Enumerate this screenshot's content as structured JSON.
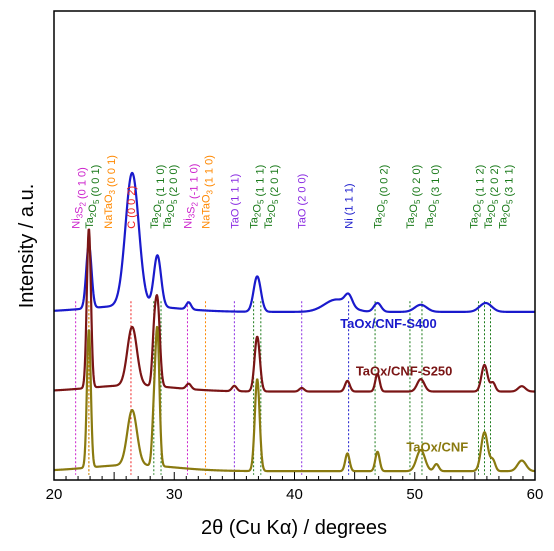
{
  "chart_data": {
    "type": "line",
    "xlabel": "2θ (Cu Kα) / degrees",
    "ylabel": "Intensity / a.u.",
    "xlim": [
      20,
      60
    ],
    "xticks": [
      20,
      25,
      30,
      35,
      40,
      45,
      50,
      55,
      60
    ],
    "xtick_labels": [
      "20",
      "",
      "30",
      "",
      "40",
      "",
      "50",
      "",
      "60"
    ],
    "yunits": "a.u. (stacked, offset)",
    "grid": false,
    "series": [
      {
        "name": "TaOx/CNF-S400",
        "color": "#1a1acc",
        "baseline": 9.5,
        "peaks": [
          [
            22.9,
            3.6,
            0.22
          ],
          [
            26.5,
            7.5,
            0.55
          ],
          [
            28.6,
            2.9,
            0.3
          ],
          [
            31.2,
            0.4,
            0.2
          ],
          [
            36.9,
            2.0,
            0.3
          ],
          [
            43.5,
            0.7,
            1.0
          ],
          [
            44.5,
            0.6,
            0.3
          ],
          [
            46.9,
            0.5,
            0.3
          ],
          [
            50.5,
            0.4,
            0.5
          ],
          [
            55.9,
            0.5,
            0.5
          ]
        ]
      },
      {
        "name": "TaOx/CNF-S250",
        "color": "#7a1515",
        "baseline": 5.0,
        "peaks": [
          [
            22.9,
            9.0,
            0.17
          ],
          [
            26.5,
            3.3,
            0.4
          ],
          [
            28.6,
            4.8,
            0.2
          ],
          [
            28.3,
            2.0,
            0.15
          ],
          [
            31.2,
            0.3,
            0.2
          ],
          [
            35.0,
            0.3,
            0.2
          ],
          [
            36.9,
            3.1,
            0.22
          ],
          [
            40.6,
            0.2,
            0.2
          ],
          [
            44.4,
            0.6,
            0.2
          ],
          [
            46.9,
            1.0,
            0.18
          ],
          [
            50.5,
            0.7,
            0.3
          ],
          [
            55.8,
            1.5,
            0.25
          ],
          [
            56.5,
            0.5,
            0.2
          ],
          [
            58.9,
            0.3,
            0.3
          ]
        ]
      },
      {
        "name": "TaOx/CNF",
        "color": "#8a7a10",
        "baseline": 0.5,
        "peaks": [
          [
            22.9,
            7.8,
            0.16
          ],
          [
            26.5,
            3.1,
            0.4
          ],
          [
            28.6,
            7.5,
            0.17
          ],
          [
            28.3,
            2.5,
            0.15
          ],
          [
            36.9,
            5.2,
            0.2
          ],
          [
            44.4,
            1.0,
            0.18
          ],
          [
            46.9,
            1.1,
            0.18
          ],
          [
            50.5,
            1.2,
            0.35
          ],
          [
            51.8,
            0.4,
            0.2
          ],
          [
            55.8,
            2.2,
            0.28
          ],
          [
            56.5,
            0.6,
            0.2
          ],
          [
            58.9,
            0.6,
            0.35
          ]
        ]
      }
    ],
    "reference_lines": [
      {
        "label": "Ni3S2 (0 1 0)",
        "x": 21.8,
        "color": "#cc22cc"
      },
      {
        "label": "Ta2O5 (0 0 1)",
        "x": 22.9,
        "color": "#1a7a1a"
      },
      {
        "label": "NaTaO3 (0 0 1)",
        "x": 22.9,
        "color": "#ff8800"
      },
      {
        "label": "C (0 0 2)",
        "x": 26.4,
        "color": "#ee2222"
      },
      {
        "label": "Ta2O5 (1 1 0)",
        "x": 28.3,
        "color": "#1a7a1a"
      },
      {
        "label": "Ta2O5 (2 0 0)",
        "x": 28.9,
        "color": "#1a7a1a"
      },
      {
        "label": "Ni3S2 (-1 1 0)",
        "x": 31.1,
        "color": "#cc22cc"
      },
      {
        "label": "NaTaO3 (1 1 0)",
        "x": 32.6,
        "color": "#ff8800"
      },
      {
        "label": "TaO (1 1 1)",
        "x": 35.0,
        "color": "#8a2be2"
      },
      {
        "label": "Ta2O5 (1 1 1)",
        "x": 36.6,
        "color": "#1a7a1a"
      },
      {
        "label": "Ta2O5 (2 0 1)",
        "x": 37.2,
        "color": "#1a7a1a"
      },
      {
        "label": "TaO (2 0 0)",
        "x": 40.6,
        "color": "#8a2be2"
      },
      {
        "label": "Ni (1 1 1)",
        "x": 44.5,
        "color": "#1a1acc"
      },
      {
        "label": "Ta2O5 (0 0 2)",
        "x": 46.7,
        "color": "#1a7a1a"
      },
      {
        "label": "Ta2O5 (0 2 0)",
        "x": 49.6,
        "color": "#1a7a1a"
      },
      {
        "label": "Ta2O5 (3 1 0)",
        "x": 50.6,
        "color": "#1a7a1a"
      },
      {
        "label": "Ta2O5 (1 1 2)",
        "x": 55.3,
        "color": "#1a7a1a"
      },
      {
        "label": "Ta2O5 (2 0 2)",
        "x": 55.8,
        "color": "#1a7a1a"
      },
      {
        "label": "Ta2O5 (3 1 1)",
        "x": 56.3,
        "color": "#1a7a1a"
      }
    ],
    "annotations": [
      {
        "text": "Ni3S2 (0 1 0)",
        "color": "#cc22cc",
        "x": 21.8,
        "orientation": "vertical"
      },
      {
        "text": "Ta2O5 (0 0 1)",
        "color": "#1a7a1a",
        "x": 22.9,
        "orientation": "vertical"
      },
      {
        "text": "NaTaO3 (0 0 1)",
        "color": "#ff8800",
        "x": 24.5,
        "orientation": "vertical"
      },
      {
        "text": "C (0 0 2)",
        "color": "#ee2222",
        "x": 26.4,
        "orientation": "vertical"
      },
      {
        "text": "Ta2O5 (1 1 0)",
        "color": "#1a7a1a",
        "x": 28.3,
        "orientation": "vertical"
      },
      {
        "text": "Ta2O5 (2 0 0)",
        "color": "#1a7a1a",
        "x": 29.4,
        "orientation": "vertical"
      },
      {
        "text": "Ni3S2 (-1 1 0)",
        "color": "#cc22cc",
        "x": 31.1,
        "orientation": "vertical"
      },
      {
        "text": "NaTaO3 (1 1 0)",
        "color": "#ff8800",
        "x": 32.6,
        "orientation": "vertical"
      },
      {
        "text": "TaO (1 1 1)",
        "color": "#8a2be2",
        "x": 35.0,
        "orientation": "vertical"
      },
      {
        "text": "Ta2O5 (1 1 1)",
        "color": "#1a7a1a",
        "x": 36.6,
        "orientation": "vertical"
      },
      {
        "text": "Ta2O5 (2 0 1)",
        "color": "#1a7a1a",
        "x": 37.8,
        "orientation": "vertical"
      },
      {
        "text": "TaO (2 0 0)",
        "color": "#8a2be2",
        "x": 40.6,
        "orientation": "vertical"
      },
      {
        "text": "Ni (1 1 1)",
        "color": "#1a1acc",
        "x": 44.5,
        "orientation": "vertical"
      },
      {
        "text": "Ta2O5 (0 0 2)",
        "color": "#1a7a1a",
        "x": 46.9,
        "orientation": "vertical"
      },
      {
        "text": "Ta2O5 (0 2 0)",
        "color": "#1a7a1a",
        "x": 49.6,
        "orientation": "vertical"
      },
      {
        "text": "Ta2O5 (3 1 0)",
        "color": "#1a7a1a",
        "x": 51.2,
        "orientation": "vertical"
      },
      {
        "text": "Ta2O5 (1 1 2)",
        "color": "#1a7a1a",
        "x": 54.9,
        "orientation": "vertical"
      },
      {
        "text": "Ta2O5 (2 0 2)",
        "color": "#1a7a1a",
        "x": 56.1,
        "orientation": "vertical"
      },
      {
        "text": "Ta2O5 (3 1 1)",
        "color": "#1a7a1a",
        "x": 57.3,
        "orientation": "vertical"
      }
    ]
  }
}
